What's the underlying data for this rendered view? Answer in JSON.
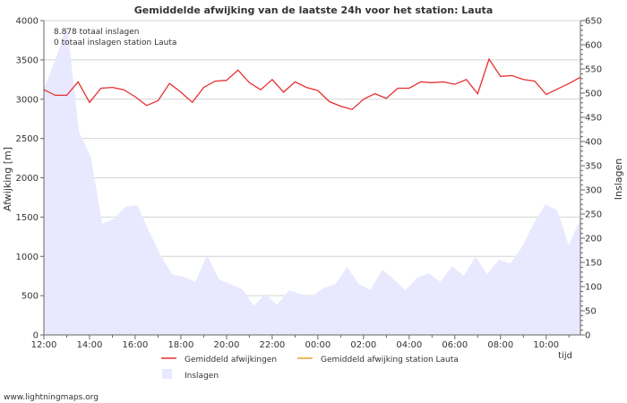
{
  "chart_data": {
    "type": "line",
    "title": "Gemiddelde afwijking van de laatste 24h voor het station: Lauta",
    "ylabel_left": "Afwijking  [m]",
    "ylabel_right": "Inslagen",
    "xlabel": "tijd",
    "ylim_left": [
      0,
      4000
    ],
    "ylim_right": [
      0,
      650
    ],
    "yticks_left": [
      "0",
      "500",
      "1000",
      "1500",
      "2000",
      "2500",
      "3000",
      "3500",
      "4000"
    ],
    "yticks_right": [
      "0",
      "50",
      "100",
      "150",
      "200",
      "250",
      "300",
      "350",
      "400",
      "450",
      "500",
      "550",
      "600",
      "650"
    ],
    "xticks": [
      "12:00",
      "14:00",
      "16:00",
      "18:00",
      "20:00",
      "22:00",
      "00:00",
      "02:00",
      "04:00",
      "06:00",
      "08:00",
      "10:00"
    ],
    "annotations": [
      "8.878 totaal inslagen",
      "0 totaal inslagen station Lauta"
    ],
    "series": [
      {
        "name": "Gemiddeld afwijkingen",
        "color": "#e53030",
        "axis": "left",
        "values": [
          3120,
          3050,
          3050,
          3220,
          2960,
          3140,
          3150,
          3120,
          3030,
          2920,
          2980,
          3200,
          3090,
          2960,
          3150,
          3230,
          3240,
          3370,
          3210,
          3120,
          3250,
          3090,
          3220,
          3150,
          3110,
          2970,
          2910,
          2870,
          3000,
          3070,
          3010,
          3140,
          3140,
          3220,
          3210,
          3220,
          3190,
          3250,
          3070,
          3510,
          3290,
          3300,
          3250,
          3230,
          3060,
          3130,
          3200,
          3280
        ]
      },
      {
        "name": "Gemiddeld afwijking station Lauta",
        "color": "#f0a030",
        "axis": "left",
        "values": []
      },
      {
        "name": "Inslagen",
        "color": "#e8e8ff",
        "axis": "right",
        "type": "area",
        "values": [
          510,
          570,
          640,
          420,
          370,
          230,
          240,
          265,
          268,
          215,
          165,
          125,
          120,
          110,
          165,
          115,
          105,
          95,
          60,
          85,
          62,
          92,
          85,
          80,
          97,
          105,
          140,
          105,
          93,
          135,
          115,
          92,
          118,
          127,
          110,
          142,
          122,
          162,
          125,
          155,
          148,
          182,
          230,
          270,
          258,
          185,
          240
        ]
      }
    ]
  },
  "footer": "www.lightningmaps.org"
}
